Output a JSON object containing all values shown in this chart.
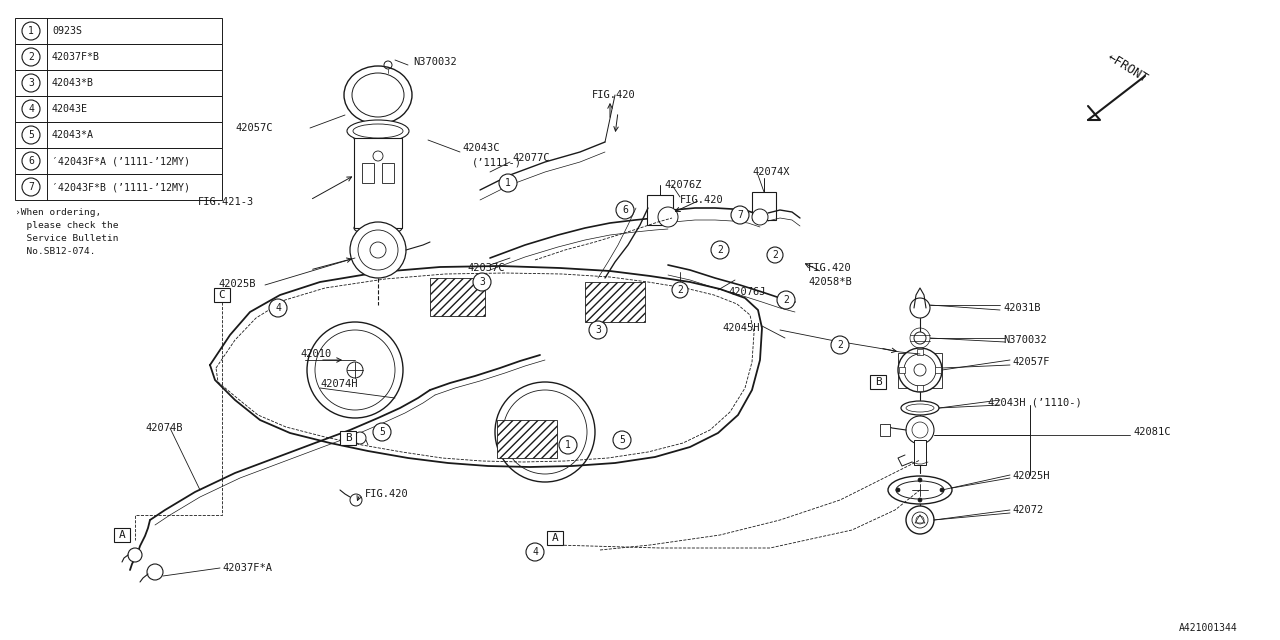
{
  "bg_color": "#ffffff",
  "line_color": "#1a1a1a",
  "legend_items": [
    [
      "1",
      "0923S"
    ],
    [
      "2",
      "42037F*B"
    ],
    [
      "3",
      "42043*B"
    ],
    [
      "4",
      "42043E"
    ],
    [
      "5",
      "42043*A"
    ],
    [
      "6",
      "′42043F*A (’1111-’12MY)"
    ],
    [
      "7",
      "′42043F*B (’1111-’12MY)"
    ]
  ],
  "note_lines": [
    "›When ordering,",
    "  please check the",
    "  Service Bulletin",
    "  No.SB12-074."
  ]
}
